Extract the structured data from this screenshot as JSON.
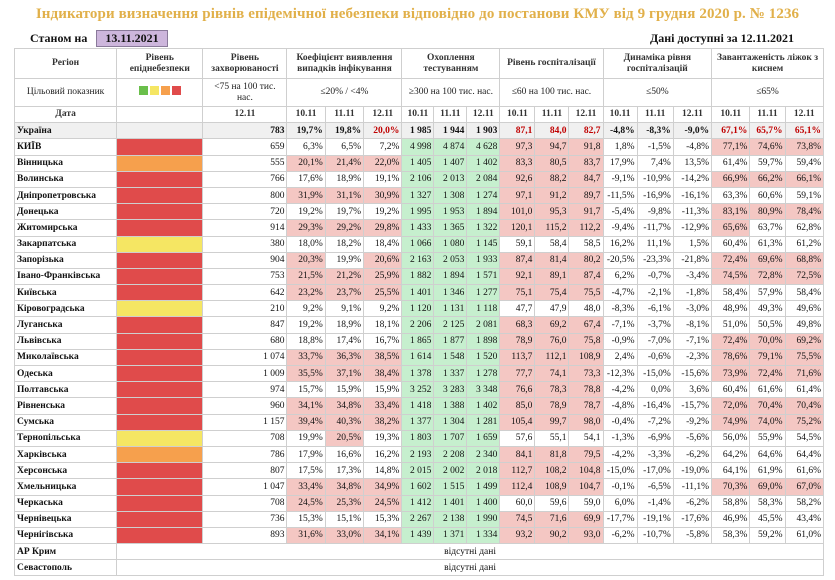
{
  "title": "Індикатори визначення рівнів епідемічної небезпеки відповідно до постанови КМУ від 9 грудня 2020 р. № 1236",
  "as_of_label": "Станом на",
  "as_of_date": "13.11.2021",
  "data_available": "Дані доступні за 12.11.2021",
  "headers": {
    "region": "Регіон",
    "target": "Цільовий показник",
    "date": "Дата",
    "level": "Рівень епіднебезпеки",
    "incidence": "Рівень захворюваності",
    "incidence_target": "<75 на 100 тис. нас.",
    "detection": "Коефіцієнт виявлення випадків інфікування",
    "detection_target": "≤20% / <4%",
    "testing": "Охоплення тестуванням",
    "testing_target": "≥300 на 100 тис. нас.",
    "hosp": "Рівень госпіталізації",
    "hosp_target": "≤60 на 100 тис. нас.",
    "hosp_dyn": "Динаміка рівня госпіталізацій",
    "hosp_dyn_target": "≤50%",
    "beds": "Завантаженість ліжок з киснем",
    "beds_target": "≤65%",
    "date_incidence": "12.11",
    "dates3": [
      "10.11",
      "11.11",
      "12.11"
    ]
  },
  "level_colors": {
    "red": "#E04B4B",
    "orange": "#F6A04D",
    "yellow": "#F5E663",
    "green": "#6ABF4B"
  },
  "target_swatches": [
    "#6ABF4B",
    "#F5E663",
    "#F6A04D",
    "#E04B4B"
  ],
  "rows": [
    {
      "region": "Україна",
      "level": "",
      "inc": "783",
      "det": [
        "19,7%",
        "19,8%",
        "20,0%"
      ],
      "test": [
        "1 985",
        "1 944",
        "1 903"
      ],
      "hosp": [
        "87,1",
        "84,0",
        "82,7"
      ],
      "dyn": [
        "-4,8%",
        "-8,3%",
        "-9,0%"
      ],
      "beds": [
        "67,1%",
        "65,7%",
        "65,1%"
      ]
    },
    {
      "region": "КИЇВ",
      "level": "red",
      "inc": "659",
      "det": [
        "6,3%",
        "6,5%",
        "7,2%"
      ],
      "test": [
        "4 998",
        "4 874",
        "4 628"
      ],
      "hosp": [
        "97,3",
        "94,7",
        "91,8"
      ],
      "dyn": [
        "1,8%",
        "-1,5%",
        "-4,8%"
      ],
      "beds": [
        "77,1%",
        "74,6%",
        "73,8%"
      ]
    },
    {
      "region": "Вінницька",
      "level": "orange",
      "inc": "555",
      "det": [
        "20,1%",
        "21,4%",
        "22,0%"
      ],
      "test": [
        "1 405",
        "1 407",
        "1 402"
      ],
      "hosp": [
        "83,3",
        "80,5",
        "83,7"
      ],
      "dyn": [
        "17,9%",
        "7,4%",
        "13,5%"
      ],
      "beds": [
        "61,4%",
        "59,7%",
        "59,4%"
      ]
    },
    {
      "region": "Волинська",
      "level": "red",
      "inc": "766",
      "det": [
        "17,6%",
        "18,9%",
        "19,1%"
      ],
      "test": [
        "2 106",
        "2 013",
        "2 084"
      ],
      "hosp": [
        "92,6",
        "88,2",
        "84,7"
      ],
      "dyn": [
        "-9,1%",
        "-10,9%",
        "-14,2%"
      ],
      "beds": [
        "66,9%",
        "66,2%",
        "66,1%"
      ]
    },
    {
      "region": "Дніпропетровська",
      "level": "red",
      "inc": "800",
      "det": [
        "31,9%",
        "31,1%",
        "30,9%"
      ],
      "test": [
        "1 327",
        "1 308",
        "1 274"
      ],
      "hosp": [
        "97,1",
        "91,2",
        "89,7"
      ],
      "dyn": [
        "-11,5%",
        "-16,9%",
        "-16,1%"
      ],
      "beds": [
        "63,3%",
        "60,6%",
        "59,1%"
      ]
    },
    {
      "region": "Донецька",
      "level": "red",
      "inc": "720",
      "det": [
        "19,2%",
        "19,7%",
        "19,2%"
      ],
      "test": [
        "1 995",
        "1 953",
        "1 894"
      ],
      "hosp": [
        "101,0",
        "95,3",
        "91,7"
      ],
      "dyn": [
        "-5,4%",
        "-9,8%",
        "-11,3%"
      ],
      "beds": [
        "83,1%",
        "80,9%",
        "78,4%"
      ]
    },
    {
      "region": "Житомирська",
      "level": "red",
      "inc": "914",
      "det": [
        "29,3%",
        "29,2%",
        "29,8%"
      ],
      "test": [
        "1 433",
        "1 365",
        "1 322"
      ],
      "hosp": [
        "120,1",
        "115,2",
        "112,2"
      ],
      "dyn": [
        "-9,4%",
        "-11,7%",
        "-12,9%"
      ],
      "beds": [
        "65,6%",
        "63,7%",
        "62,8%"
      ]
    },
    {
      "region": "Закарпатська",
      "level": "yellow",
      "inc": "380",
      "det": [
        "18,0%",
        "18,2%",
        "18,4%"
      ],
      "test": [
        "1 066",
        "1 080",
        "1 145"
      ],
      "hosp": [
        "59,1",
        "58,4",
        "58,5"
      ],
      "dyn": [
        "16,2%",
        "11,1%",
        "1,5%"
      ],
      "beds": [
        "60,4%",
        "61,3%",
        "61,2%"
      ]
    },
    {
      "region": "Запорізька",
      "level": "red",
      "inc": "904",
      "det": [
        "20,3%",
        "19,9%",
        "20,6%"
      ],
      "test": [
        "2 163",
        "2 053",
        "1 933"
      ],
      "hosp": [
        "87,4",
        "81,4",
        "80,2"
      ],
      "dyn": [
        "-20,5%",
        "-23,3%",
        "-21,8%"
      ],
      "beds": [
        "72,4%",
        "69,6%",
        "68,8%"
      ]
    },
    {
      "region": "Івано-Франківська",
      "level": "red",
      "inc": "753",
      "det": [
        "21,5%",
        "21,2%",
        "25,9%"
      ],
      "test": [
        "1 882",
        "1 894",
        "1 571"
      ],
      "hosp": [
        "92,1",
        "89,1",
        "87,4"
      ],
      "dyn": [
        "6,2%",
        "-0,7%",
        "-3,4%"
      ],
      "beds": [
        "74,5%",
        "72,8%",
        "72,5%"
      ]
    },
    {
      "region": "Київська",
      "level": "red",
      "inc": "642",
      "det": [
        "23,2%",
        "23,7%",
        "25,5%"
      ],
      "test": [
        "1 401",
        "1 346",
        "1 277"
      ],
      "hosp": [
        "75,1",
        "75,4",
        "75,5"
      ],
      "dyn": [
        "-4,7%",
        "-2,1%",
        "-1,8%"
      ],
      "beds": [
        "58,4%",
        "57,9%",
        "58,4%"
      ]
    },
    {
      "region": "Кіровоградська",
      "level": "yellow",
      "inc": "210",
      "det": [
        "9,2%",
        "9,1%",
        "9,2%"
      ],
      "test": [
        "1 120",
        "1 131",
        "1 118"
      ],
      "hosp": [
        "47,7",
        "47,9",
        "48,0"
      ],
      "dyn": [
        "-8,3%",
        "-6,1%",
        "-3,0%"
      ],
      "beds": [
        "48,9%",
        "49,3%",
        "49,6%"
      ]
    },
    {
      "region": "Луганська",
      "level": "red",
      "inc": "847",
      "det": [
        "19,2%",
        "18,9%",
        "18,1%"
      ],
      "test": [
        "2 206",
        "2 125",
        "2 081"
      ],
      "hosp": [
        "68,3",
        "69,2",
        "67,4"
      ],
      "dyn": [
        "-7,1%",
        "-3,7%",
        "-8,1%"
      ],
      "beds": [
        "51,0%",
        "50,5%",
        "49,8%"
      ]
    },
    {
      "region": "Львівська",
      "level": "red",
      "inc": "680",
      "det": [
        "18,8%",
        "17,4%",
        "16,7%"
      ],
      "test": [
        "1 865",
        "1 877",
        "1 898"
      ],
      "hosp": [
        "78,9",
        "76,0",
        "75,8"
      ],
      "dyn": [
        "-0,9%",
        "-7,0%",
        "-7,1%"
      ],
      "beds": [
        "72,4%",
        "70,0%",
        "69,2%"
      ]
    },
    {
      "region": "Миколаївська",
      "level": "red",
      "inc": "1 074",
      "det": [
        "33,7%",
        "36,3%",
        "38,5%"
      ],
      "test": [
        "1 614",
        "1 548",
        "1 520"
      ],
      "hosp": [
        "113,7",
        "112,1",
        "108,9"
      ],
      "dyn": [
        "2,4%",
        "-0,6%",
        "-2,3%"
      ],
      "beds": [
        "78,6%",
        "79,1%",
        "75,5%"
      ]
    },
    {
      "region": "Одеська",
      "level": "red",
      "inc": "1 009",
      "det": [
        "35,5%",
        "37,1%",
        "38,4%"
      ],
      "test": [
        "1 378",
        "1 337",
        "1 278"
      ],
      "hosp": [
        "77,7",
        "74,1",
        "73,3"
      ],
      "dyn": [
        "-12,3%",
        "-15,0%",
        "-15,6%"
      ],
      "beds": [
        "73,9%",
        "72,4%",
        "71,6%"
      ]
    },
    {
      "region": "Полтавська",
      "level": "red",
      "inc": "974",
      "det": [
        "15,7%",
        "15,9%",
        "15,9%"
      ],
      "test": [
        "3 252",
        "3 283",
        "3 348"
      ],
      "hosp": [
        "76,6",
        "78,3",
        "78,8"
      ],
      "dyn": [
        "-4,2%",
        "0,0%",
        "3,6%"
      ],
      "beds": [
        "60,4%",
        "61,6%",
        "61,4%"
      ]
    },
    {
      "region": "Рівненська",
      "level": "red",
      "inc": "960",
      "det": [
        "34,1%",
        "34,8%",
        "33,4%"
      ],
      "test": [
        "1 418",
        "1 388",
        "1 402"
      ],
      "hosp": [
        "85,0",
        "78,9",
        "78,7"
      ],
      "dyn": [
        "-4,8%",
        "-16,4%",
        "-15,7%"
      ],
      "beds": [
        "72,0%",
        "70,4%",
        "70,4%"
      ]
    },
    {
      "region": "Сумська",
      "level": "red",
      "inc": "1 157",
      "det": [
        "39,4%",
        "40,3%",
        "38,2%"
      ],
      "test": [
        "1 377",
        "1 304",
        "1 281"
      ],
      "hosp": [
        "105,4",
        "99,7",
        "98,0"
      ],
      "dyn": [
        "-0,4%",
        "-7,2%",
        "-9,2%"
      ],
      "beds": [
        "74,9%",
        "74,0%",
        "75,2%"
      ]
    },
    {
      "region": "Тернопільська",
      "level": "yellow",
      "inc": "708",
      "det": [
        "19,9%",
        "20,5%",
        "19,3%"
      ],
      "test": [
        "1 803",
        "1 707",
        "1 659"
      ],
      "hosp": [
        "57,6",
        "55,1",
        "54,1"
      ],
      "dyn": [
        "-1,3%",
        "-6,9%",
        "-5,6%"
      ],
      "beds": [
        "56,0%",
        "55,9%",
        "54,5%"
      ]
    },
    {
      "region": "Харківська",
      "level": "orange",
      "inc": "786",
      "det": [
        "17,9%",
        "16,6%",
        "16,2%"
      ],
      "test": [
        "2 193",
        "2 208",
        "2 340"
      ],
      "hosp": [
        "84,1",
        "81,8",
        "79,5"
      ],
      "dyn": [
        "-4,2%",
        "-3,3%",
        "-6,2%"
      ],
      "beds": [
        "64,2%",
        "64,6%",
        "64,4%"
      ]
    },
    {
      "region": "Херсонська",
      "level": "red",
      "inc": "807",
      "det": [
        "17,5%",
        "17,3%",
        "14,8%"
      ],
      "test": [
        "2 015",
        "2 002",
        "2 018"
      ],
      "hosp": [
        "112,7",
        "108,2",
        "104,8"
      ],
      "dyn": [
        "-15,0%",
        "-17,0%",
        "-19,0%"
      ],
      "beds": [
        "64,1%",
        "61,9%",
        "61,6%"
      ]
    },
    {
      "region": "Хмельницька",
      "level": "red",
      "inc": "1 047",
      "det": [
        "33,4%",
        "34,8%",
        "34,9%"
      ],
      "test": [
        "1 602",
        "1 515",
        "1 499"
      ],
      "hosp": [
        "112,4",
        "108,9",
        "104,7"
      ],
      "dyn": [
        "-0,1%",
        "-6,5%",
        "-11,1%"
      ],
      "beds": [
        "70,3%",
        "69,0%",
        "67,0%"
      ]
    },
    {
      "region": "Черкаська",
      "level": "red",
      "inc": "708",
      "det": [
        "24,5%",
        "25,3%",
        "24,5%"
      ],
      "test": [
        "1 412",
        "1 401",
        "1 400"
      ],
      "hosp": [
        "60,0",
        "59,6",
        "59,0"
      ],
      "dyn": [
        "6,0%",
        "-1,4%",
        "-6,2%"
      ],
      "beds": [
        "58,8%",
        "58,3%",
        "58,2%"
      ]
    },
    {
      "region": "Чернівецька",
      "level": "red",
      "inc": "736",
      "det": [
        "15,3%",
        "15,1%",
        "15,3%"
      ],
      "test": [
        "2 267",
        "2 138",
        "1 990"
      ],
      "hosp": [
        "74,5",
        "71,6",
        "69,9"
      ],
      "dyn": [
        "-17,7%",
        "-19,1%",
        "-17,6%"
      ],
      "beds": [
        "46,9%",
        "45,5%",
        "43,4%"
      ]
    },
    {
      "region": "Чернігівська",
      "level": "red",
      "inc": "893",
      "det": [
        "31,6%",
        "33,0%",
        "34,1%"
      ],
      "test": [
        "1 439",
        "1 371",
        "1 334"
      ],
      "hosp": [
        "93,2",
        "90,2",
        "93,0"
      ],
      "dyn": [
        "-6,2%",
        "-10,7%",
        "-5,8%"
      ],
      "beds": [
        "58,3%",
        "59,2%",
        "61,0%"
      ]
    }
  ],
  "missing_rows": [
    {
      "region": "АР Крим",
      "text": "відсутні дані"
    },
    {
      "region": "Севастополь",
      "text": "відсутні дані"
    }
  ]
}
